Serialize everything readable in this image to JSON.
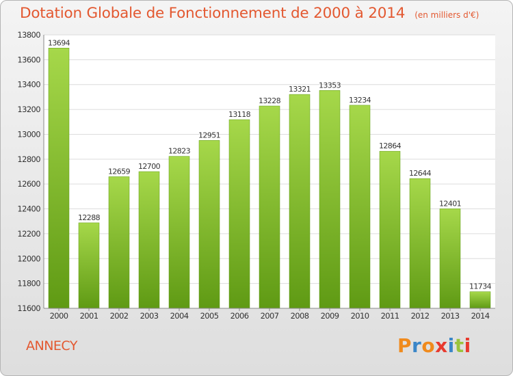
{
  "title": "Dotation Globale de Fonctionnement de 2000 à 2014",
  "subtitle": "(en milliers d'€)",
  "city": "ANNECY",
  "brand": {
    "letters": [
      "P",
      "r",
      "o",
      "x",
      "i",
      "t",
      "i"
    ],
    "colors": [
      "#f08a1c",
      "#3a86c8",
      "#f08a1c",
      "#e83a2e",
      "#3a86c8",
      "#9ac33c",
      "#e83a2e"
    ]
  },
  "colors": {
    "bar_top": "#a6d84a",
    "bar_bottom": "#5f9a14",
    "accent": "#e35830"
  },
  "chart_data": {
    "type": "bar",
    "categories": [
      "2000",
      "2001",
      "2002",
      "2003",
      "2004",
      "2005",
      "2006",
      "2007",
      "2008",
      "2009",
      "2010",
      "2011",
      "2012",
      "2013",
      "2014"
    ],
    "values": [
      13694,
      12288,
      12659,
      12700,
      12823,
      12951,
      13118,
      13228,
      13321,
      13353,
      13234,
      12864,
      12644,
      12401,
      11734
    ],
    "data_labels": [
      "13694",
      "12288",
      "12659",
      "12700",
      "12823",
      "12951",
      "13118",
      "13228",
      "13321",
      "13353",
      "13234",
      "12864",
      "12644",
      "12401",
      "11734"
    ],
    "yticks": [
      11600,
      11800,
      12000,
      12200,
      12400,
      12600,
      12800,
      13000,
      13200,
      13400,
      13600,
      13800
    ],
    "ylim": [
      11600,
      13800
    ],
    "xlabel": "",
    "ylabel": "",
    "grid": true
  }
}
